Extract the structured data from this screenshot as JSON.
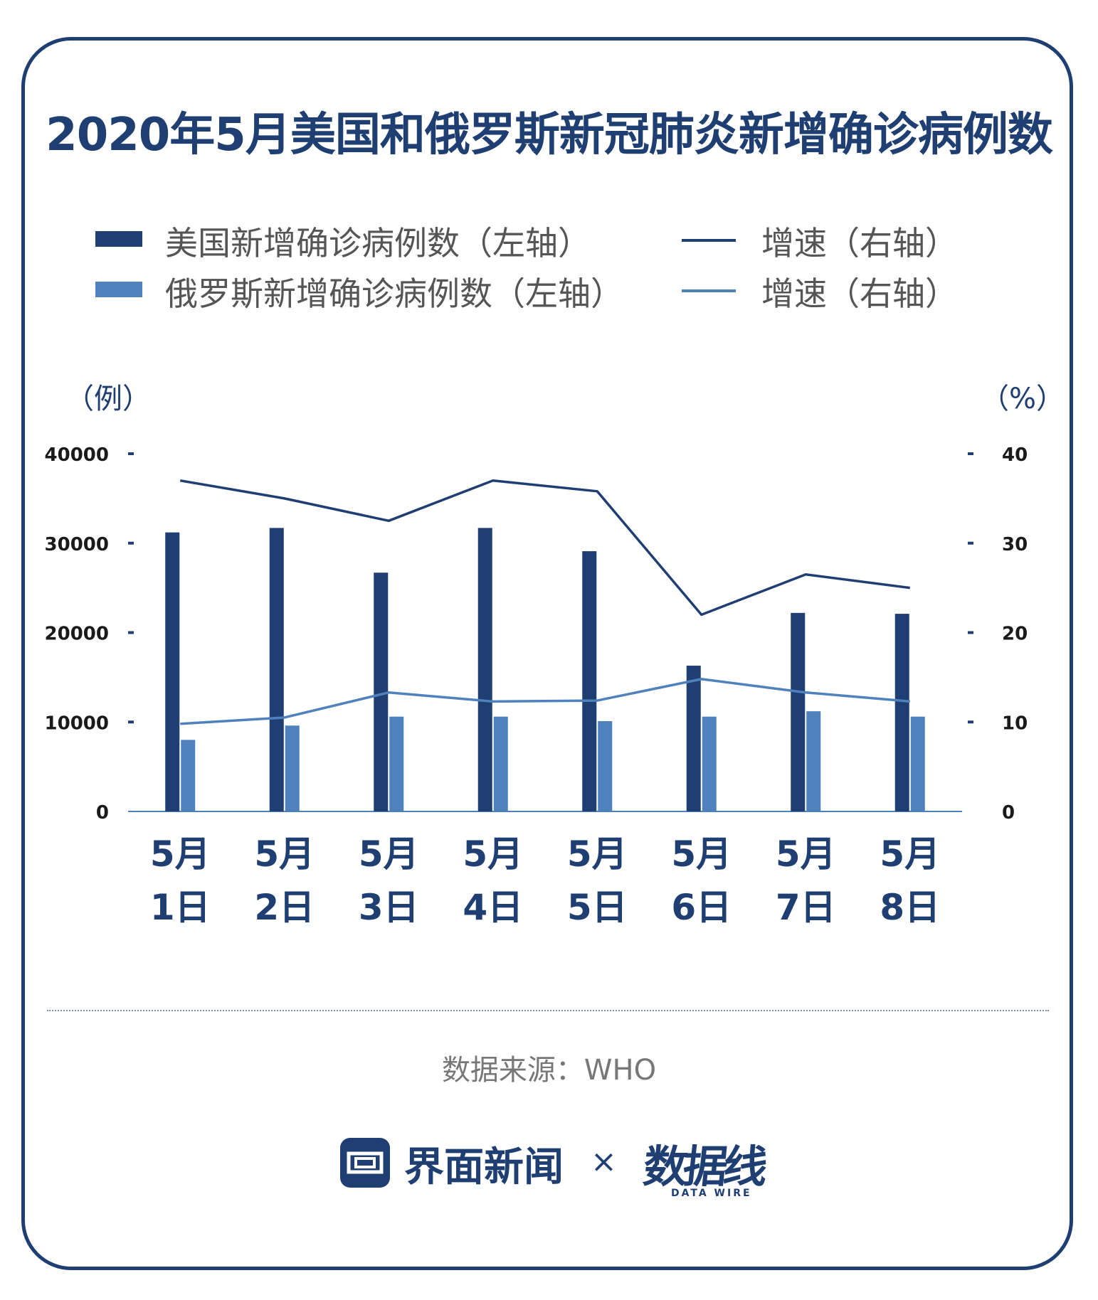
{
  "title": "2020年5月美国和俄罗斯新冠肺炎新增确诊病例数",
  "legend": {
    "us_bar": "美国新增确诊病例数（左轴）",
    "ru_bar": "俄罗斯新增确诊病例数（左轴）",
    "us_line": "增速（右轴）",
    "ru_line": "增速（右轴）"
  },
  "units": {
    "left": "（例）",
    "right": "（%）"
  },
  "source": "数据来源：WHO",
  "footer": {
    "brand": "界面新闻",
    "times": "×",
    "partner": "数据线",
    "partner_en": "DATA WIRE"
  },
  "colors": {
    "us": "#1f3f73",
    "ru": "#4f81bd",
    "axis": "#4f81bd"
  },
  "chart_data": {
    "type": "bar",
    "categories": [
      "5月\n1日",
      "5月\n2日",
      "5月\n3日",
      "5月\n4日",
      "5月\n5日",
      "5月\n6日",
      "5月\n7日",
      "5月\n8日"
    ],
    "category_lines": [
      [
        "5月",
        "1日"
      ],
      [
        "5月",
        "2日"
      ],
      [
        "5月",
        "3日"
      ],
      [
        "5月",
        "4日"
      ],
      [
        "5月",
        "5日"
      ],
      [
        "5月",
        "6日"
      ],
      [
        "5月",
        "7日"
      ],
      [
        "5月",
        "8日"
      ]
    ],
    "series": [
      {
        "name": "美国新增确诊病例数（左轴）",
        "kind": "bar",
        "axis": "left",
        "values": [
          31200,
          31700,
          26700,
          31700,
          29100,
          16300,
          22200,
          22100
        ]
      },
      {
        "name": "俄罗斯新增确诊病例数（左轴）",
        "kind": "bar",
        "axis": "left",
        "values": [
          8000,
          9600,
          10600,
          10600,
          10100,
          10600,
          11200,
          10600
        ]
      },
      {
        "name": "增速（右轴）",
        "kind": "line",
        "axis": "right",
        "ref": "us",
        "values": [
          37,
          35,
          32.5,
          37,
          35.8,
          22,
          26.5,
          25
        ]
      },
      {
        "name": "增速（右轴）",
        "kind": "line",
        "axis": "right",
        "ref": "ru",
        "values": [
          9.8,
          10.5,
          13.3,
          12.3,
          12.4,
          14.8,
          13.3,
          12.3
        ]
      }
    ],
    "left_axis": {
      "ticks": [
        "0",
        "10000",
        "20000",
        "30000",
        "40000"
      ],
      "range": [
        0,
        40000
      ]
    },
    "right_axis": {
      "ticks": [
        "0",
        "10",
        "20",
        "30",
        "40"
      ],
      "range": [
        0,
        40
      ]
    },
    "ylabel_left": "（例）",
    "ylabel_right": "（%）"
  }
}
